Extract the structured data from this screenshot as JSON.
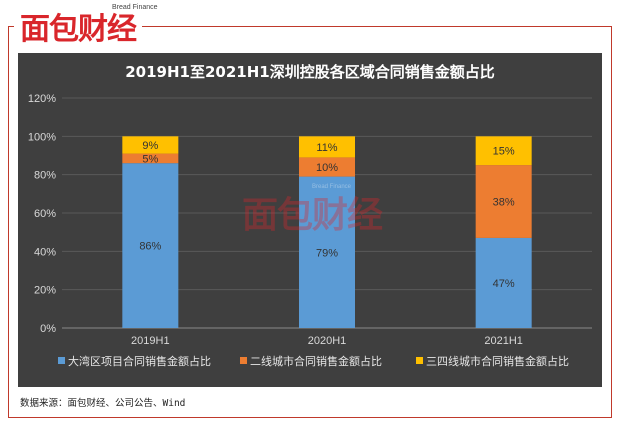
{
  "logo": {
    "text": "面包财经",
    "subtitle": "Bread Finance"
  },
  "source": "数据来源：面包财经、公司公告、Wind",
  "watermark": {
    "text": "面包财经",
    "subtitle": "Bread Finance"
  },
  "chart_data": {
    "type": "bar",
    "stacked": true,
    "title": "2019H1至2021H1深圳控股各区域合同销售金额占比",
    "categories": [
      "2019H1",
      "2020H1",
      "2021H1"
    ],
    "y_ticks": [
      "0%",
      "20%",
      "40%",
      "60%",
      "80%",
      "100%",
      "120%"
    ],
    "ylim": [
      0,
      120
    ],
    "grid": true,
    "legend_position": "bottom",
    "series": [
      {
        "name": "大湾区项目合同销售金额占比",
        "color": "#5b9bd5",
        "values": [
          86,
          79,
          47
        ],
        "labels": [
          "86%",
          "79%",
          "47%"
        ]
      },
      {
        "name": "二线城市合同销售金额占比",
        "color": "#ed7d31",
        "values": [
          5,
          10,
          38
        ],
        "labels": [
          "5%",
          "10%",
          "38%"
        ]
      },
      {
        "name": "三四线城市合同销售金额占比",
        "color": "#ffc000",
        "values": [
          9,
          11,
          15
        ],
        "labels": [
          "9%",
          "11%",
          "15%"
        ]
      }
    ]
  }
}
